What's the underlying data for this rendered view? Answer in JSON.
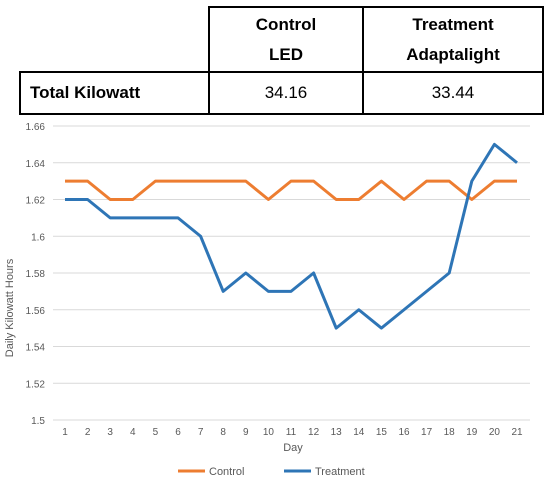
{
  "table": {
    "columns": [
      {
        "line1": "Control",
        "line2": "LED"
      },
      {
        "line1": "Treatment",
        "line2": "Adaptalight"
      }
    ],
    "row_label": "Total Kilowatt",
    "values": [
      "34.16",
      "33.44"
    ]
  },
  "chart_data": {
    "type": "line",
    "title": "",
    "xlabel": "Day",
    "ylabel": "Daily Kilowatt Hours",
    "x": [
      1,
      2,
      3,
      4,
      5,
      6,
      7,
      8,
      9,
      10,
      11,
      12,
      13,
      14,
      15,
      16,
      17,
      18,
      19,
      20,
      21
    ],
    "ylim": [
      1.5,
      1.66
    ],
    "yticks": [
      "1.5",
      "1.52",
      "1.54",
      "1.56",
      "1.58",
      "1.6",
      "1.62",
      "1.64",
      "1.66"
    ],
    "grid": true,
    "legend_position": "bottom",
    "series": [
      {
        "name": "Control",
        "color": "#ED7D31",
        "values": [
          1.63,
          1.63,
          1.62,
          1.62,
          1.63,
          1.63,
          1.63,
          1.63,
          1.63,
          1.62,
          1.63,
          1.63,
          1.62,
          1.62,
          1.63,
          1.62,
          1.63,
          1.63,
          1.62,
          1.63,
          1.63
        ]
      },
      {
        "name": "Treatment",
        "color": "#2E75B6",
        "values": [
          1.62,
          1.62,
          1.61,
          1.61,
          1.61,
          1.61,
          1.6,
          1.57,
          1.58,
          1.57,
          1.57,
          1.58,
          1.55,
          1.56,
          1.55,
          1.56,
          1.57,
          1.58,
          1.63,
          1.65,
          1.64
        ]
      }
    ]
  }
}
